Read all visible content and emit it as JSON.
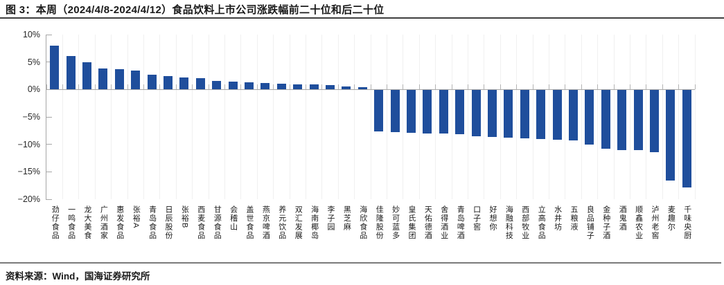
{
  "title": "图 3：本周（2024/4/8-2024/4/12）食品饮料上市公司涨跌幅前二十位和后二十位",
  "footer": {
    "source": "资料来源：Wind，国海证券研究所"
  },
  "colors": {
    "bar": "#1f4e9c",
    "axis": "#a6a6a6",
    "grid": "#f0f0f0",
    "rule_dark": "#3f3f3f",
    "rule_footer": "#7a7a7a"
  },
  "chart_data": {
    "type": "bar",
    "title": "本周（2024/4/8-2024/4/12）食品饮料上市公司涨跌幅前二十位和后二十位",
    "categories": [
      "劲仔食品",
      "一鸣食品",
      "龙大美食",
      "广州酒家",
      "惠发食品",
      "张裕A",
      "青岛食品",
      "日辰股份",
      "张裕B",
      "西麦食品",
      "甘源食品",
      "会稽山",
      "盖世食品",
      "燕京啤酒",
      "养元饮品",
      "双汇发展",
      "海南椰岛",
      "李子园",
      "黑芝麻",
      "海欣食品",
      "佳隆股份",
      "妙可蓝多",
      "皇氏集团",
      "天佑德酒",
      "舍得酒业",
      "青岛啤酒",
      "口子窖",
      "好想你",
      "海融科技",
      "西部牧业",
      "立高食品",
      "水井坊",
      "五粮液",
      "良品铺子",
      "金种子酒",
      "酒鬼酒",
      "顺鑫农业",
      "泸州老窖",
      "麦趣尔",
      "千味央厨"
    ],
    "values": [
      8.0,
      6.1,
      4.9,
      3.8,
      3.7,
      3.5,
      2.7,
      2.5,
      2.2,
      2.0,
      1.5,
      1.4,
      1.3,
      1.2,
      1.0,
      0.9,
      0.9,
      0.8,
      0.6,
      0.4,
      -7.6,
      -7.8,
      -7.9,
      -8.0,
      -8.0,
      -8.2,
      -8.5,
      -8.7,
      -8.8,
      -8.9,
      -9.0,
      -9.2,
      -9.3,
      -10.0,
      -10.8,
      -11.0,
      -11.0,
      -11.4,
      -16.6,
      -17.8
    ],
    "xlabel": "",
    "ylabel": "",
    "ylim": [
      -20,
      10
    ],
    "y_ticks": [
      "10%",
      "5%",
      "0%",
      "−5%",
      "−10%",
      "−15%",
      "−20%"
    ],
    "y_tick_values": [
      10,
      5,
      0,
      -5,
      -10,
      -15,
      -20
    ],
    "grid": "faint vertical category gridlines",
    "legend": "none",
    "bar_color": "#1f4e9c"
  }
}
